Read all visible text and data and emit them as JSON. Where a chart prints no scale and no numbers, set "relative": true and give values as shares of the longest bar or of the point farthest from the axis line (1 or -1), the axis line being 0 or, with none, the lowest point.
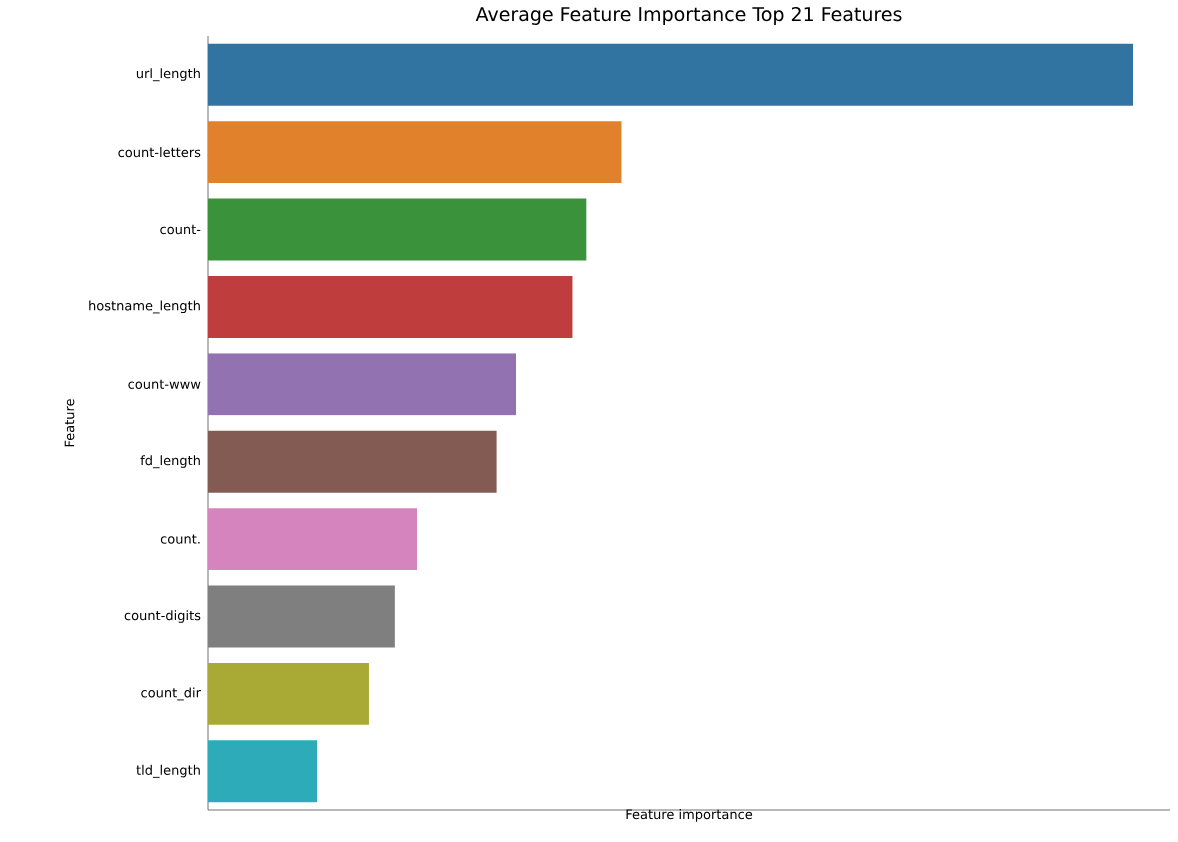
{
  "chart_data": {
    "type": "bar",
    "orientation": "horizontal",
    "relative": true,
    "title": "Average Feature Importance Top 21 Features",
    "xlabel": "Feature importance",
    "ylabel": "Feature",
    "categories": [
      "url_length",
      "count-letters",
      "count-",
      "hostname_length",
      "count-www",
      "fd_length",
      "count.",
      "count-digits",
      "count_dir",
      "tld_length"
    ],
    "values": [
      1,
      0.447,
      0.409,
      0.394,
      0.333,
      0.312,
      0.226,
      0.202,
      0.174,
      0.118
    ],
    "colors": [
      "#3274a1",
      "#e1812c",
      "#3a923a",
      "#c03d3e",
      "#9372b2",
      "#845b53",
      "#d684bd",
      "#7f7f7f",
      "#a9aa35",
      "#2eabb8"
    ]
  }
}
